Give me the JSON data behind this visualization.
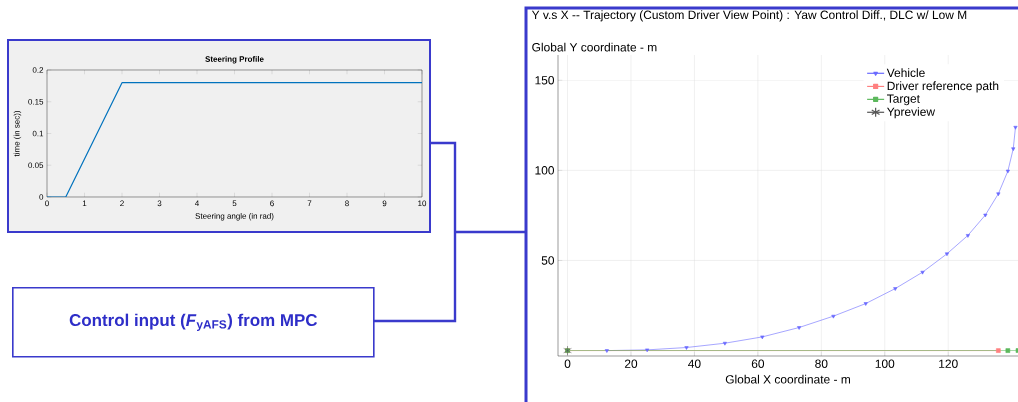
{
  "chart_data": [
    {
      "type": "line",
      "title": "Steering Profile",
      "xlabel": "Steering angle (in rad)",
      "ylabel": "time (in sec))",
      "xlim": [
        0,
        10
      ],
      "ylim": [
        0,
        0.2
      ],
      "xticks": [
        0,
        1,
        2,
        3,
        4,
        5,
        6,
        7,
        8,
        9,
        10
      ],
      "yticks": [
        0,
        0.05,
        0.1,
        0.15,
        0.2
      ],
      "grid": false,
      "legend": false,
      "series": [
        {
          "color": "#0072bd",
          "x": [
            0,
            0.5,
            2,
            10
          ],
          "values": [
            0,
            0,
            0.18,
            0.18
          ]
        }
      ]
    },
    {
      "type": "line",
      "title": "Y v.s X -- Trajectory (Custom Driver View Point) : Yaw Control Diff., DLC w/ Low M",
      "ylabel": "Global Y coordinate - m",
      "xlabel": "Global X coordinate - m",
      "xlim": [
        -3,
        142
      ],
      "ylim": [
        -3,
        164
      ],
      "xticks": [
        0,
        20,
        40,
        60,
        80,
        100,
        120
      ],
      "yticks": [
        50,
        100,
        150
      ],
      "grid": true,
      "legend": "top right",
      "series": [
        {
          "name": "Vehicle",
          "color": "#6a6aff",
          "marker": "triangle",
          "x": [
            12.4,
            25.1,
            37.5,
            49.6,
            61.4,
            73.0,
            83.8,
            94.0,
            103.3,
            111.9,
            119.6,
            126.2,
            131.7,
            135.8,
            138.8,
            140.5,
            141.2
          ],
          "values": [
            0.0,
            0.4,
            1.7,
            4.1,
            7.6,
            12.8,
            19.1,
            26.1,
            34.4,
            43.5,
            53.7,
            63.9,
            75.2,
            87.0,
            99.6,
            112.0,
            123.9
          ]
        },
        {
          "name": "Driver reference path",
          "color": "#ff8080",
          "marker": "square",
          "x": [
            0,
            135.8
          ],
          "values": [
            0,
            0
          ]
        },
        {
          "name": "Target",
          "color": "#5cb85c",
          "marker": "square",
          "x": [
            0,
            138.8,
            142
          ],
          "values": [
            0,
            0,
            0
          ]
        },
        {
          "name": "Ypreview",
          "color": "#555555",
          "marker": "cross",
          "x": [
            0
          ],
          "values": [
            0
          ]
        }
      ]
    },
    {
      "type": "other",
      "title": "Control input (*F*$_{yAFS}$) from MPC"
    }
  ]
}
